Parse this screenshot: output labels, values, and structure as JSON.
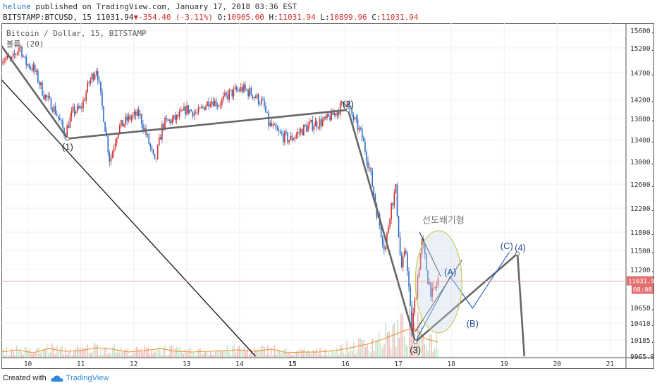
{
  "header": {
    "user": "helune",
    "published_text": " published on TradingView.com, January 17, 2018 03:36 EST",
    "symbol": "BITSTAMP:BTCUSD, 15",
    "last": "11031.94",
    "change": "-354.40 (-3.11%)",
    "o_label": "O:",
    "o_value": "10905.00",
    "h_label": "H:",
    "h_value": "11031.94",
    "l_label": "L:",
    "l_value": "10899.96",
    "c_label": "C:",
    "c_value": "11031.94"
  },
  "legend": {
    "series": "Bitcoin / Dollar, 15, BITSTAMP",
    "volume": "볼륨 (20)"
  },
  "footer": {
    "created_with": "Created with",
    "brand": "TradingView"
  },
  "colors": {
    "up": "#d0312d",
    "down": "#2b6cc4",
    "volume_ma": "#f28c28",
    "wave": "#666666",
    "blue_wave": "#2b6cc4",
    "ellipse": "#c9c95a"
  },
  "chart_data": {
    "type": "line",
    "symbol": "BITSTAMP:BTCUSD",
    "interval": "15",
    "x_ticks": [
      "10",
      "11",
      "12",
      "13",
      "14",
      "15",
      "16",
      "17",
      "18",
      "19",
      "20",
      "21"
    ],
    "x_range": [
      9.5,
      21.3
    ],
    "y_ticks": [
      15600,
      15200,
      14700,
      14200,
      13800,
      13400,
      13000,
      12600,
      12200,
      11800,
      11500,
      11200,
      10650,
      10410,
      10185,
      9965
    ],
    "y_range": [
      9965,
      15600
    ],
    "last_price": 11031.94,
    "countdown": "08:08",
    "price_path": [
      [
        9.5,
        15000
      ],
      [
        9.7,
        14950
      ],
      [
        9.85,
        15250
      ],
      [
        9.95,
        14900
      ],
      [
        10.1,
        14800
      ],
      [
        10.3,
        14300
      ],
      [
        10.5,
        14000
      ],
      [
        10.7,
        13500
      ],
      [
        10.85,
        13950
      ],
      [
        11.0,
        14000
      ],
      [
        11.15,
        14500
      ],
      [
        11.3,
        14800
      ],
      [
        11.45,
        13700
      ],
      [
        11.55,
        13000
      ],
      [
        11.7,
        13600
      ],
      [
        11.9,
        13800
      ],
      [
        12.1,
        13900
      ],
      [
        12.3,
        13300
      ],
      [
        12.4,
        12950
      ],
      [
        12.55,
        13700
      ],
      [
        12.8,
        13800
      ],
      [
        13.0,
        14000
      ],
      [
        13.2,
        13900
      ],
      [
        13.45,
        14200
      ],
      [
        13.6,
        14100
      ],
      [
        13.8,
        14300
      ],
      [
        14.05,
        14400
      ],
      [
        14.25,
        14300
      ],
      [
        14.45,
        14100
      ],
      [
        14.55,
        13700
      ],
      [
        14.75,
        13500
      ],
      [
        14.95,
        13400
      ],
      [
        15.2,
        13600
      ],
      [
        15.4,
        13700
      ],
      [
        15.6,
        13750
      ],
      [
        15.85,
        13950
      ],
      [
        16.0,
        14200
      ],
      [
        16.15,
        13800
      ],
      [
        16.3,
        13500
      ],
      [
        16.45,
        12900
      ],
      [
        16.6,
        12100
      ],
      [
        16.75,
        11500
      ],
      [
        16.85,
        12200
      ],
      [
        16.95,
        12500
      ],
      [
        17.05,
        11200
      ],
      [
        17.15,
        11500
      ],
      [
        17.25,
        10300
      ],
      [
        17.35,
        11000
      ],
      [
        17.45,
        11650
      ],
      [
        17.55,
        11100
      ],
      [
        17.65,
        10800
      ],
      [
        17.75,
        11050
      ]
    ],
    "volume_ma_label": "볼륨 (20)",
    "volume": [
      [
        9.5,
        0.8
      ],
      [
        9.8,
        1.1
      ],
      [
        10.1,
        0.7
      ],
      [
        10.4,
        1.3
      ],
      [
        10.7,
        0.9
      ],
      [
        11.0,
        1.0
      ],
      [
        11.3,
        1.4
      ],
      [
        11.6,
        1.2
      ],
      [
        11.9,
        0.8
      ],
      [
        12.2,
        1.0
      ],
      [
        12.5,
        1.3
      ],
      [
        12.8,
        0.9
      ],
      [
        13.1,
        0.8
      ],
      [
        13.4,
        0.9
      ],
      [
        13.7,
        1.0
      ],
      [
        14.0,
        1.1
      ],
      [
        14.3,
        0.9
      ],
      [
        14.6,
        1.2
      ],
      [
        14.9,
        0.7
      ],
      [
        15.2,
        0.8
      ],
      [
        15.5,
        0.8
      ],
      [
        15.8,
        1.0
      ],
      [
        16.1,
        1.4
      ],
      [
        16.4,
        1.9
      ],
      [
        16.7,
        2.6
      ],
      [
        16.9,
        3.2
      ],
      [
        17.1,
        3.8
      ],
      [
        17.3,
        4.2
      ],
      [
        17.5,
        2.7
      ],
      [
        17.75,
        2.2
      ]
    ],
    "wave_labels": [
      {
        "label": "(1)",
        "x": 10.75,
        "y": 13420
      },
      {
        "label": "(2)",
        "x": 16.05,
        "y": 13980
      },
      {
        "label": "(3)",
        "x": 17.32,
        "y": 10160
      }
    ],
    "corrective_labels": [
      {
        "label": "(A)",
        "x": 17.98,
        "y": 11100
      },
      {
        "label": "(B)",
        "x": 18.4,
        "y": 10640
      },
      {
        "label": "(C)",
        "x": 19.1,
        "y": 11480
      },
      {
        "label": "(4)",
        "x": 19.25,
        "y": 11450
      }
    ],
    "annotation": "선도쐐기형",
    "trend_line": {
      "from": [
        9.5,
        14570
      ],
      "to": [
        14.3,
        9965
      ]
    },
    "wave_path": [
      [
        9.5,
        15250
      ],
      [
        10.75,
        13420
      ],
      [
        16.05,
        13980
      ],
      [
        17.32,
        10160
      ],
      [
        19.25,
        11450
      ],
      [
        19.38,
        9965
      ]
    ],
    "blue_path": [
      [
        17.32,
        10160
      ],
      [
        17.98,
        11100
      ],
      [
        18.4,
        10640
      ],
      [
        19.1,
        11480
      ]
    ],
    "wedge_lines": [
      {
        "from": [
          17.32,
          10300
        ],
        "to": [
          18.2,
          11350
        ]
      },
      {
        "from": [
          17.4,
          11800
        ],
        "to": [
          17.8,
          11100
        ]
      }
    ]
  }
}
